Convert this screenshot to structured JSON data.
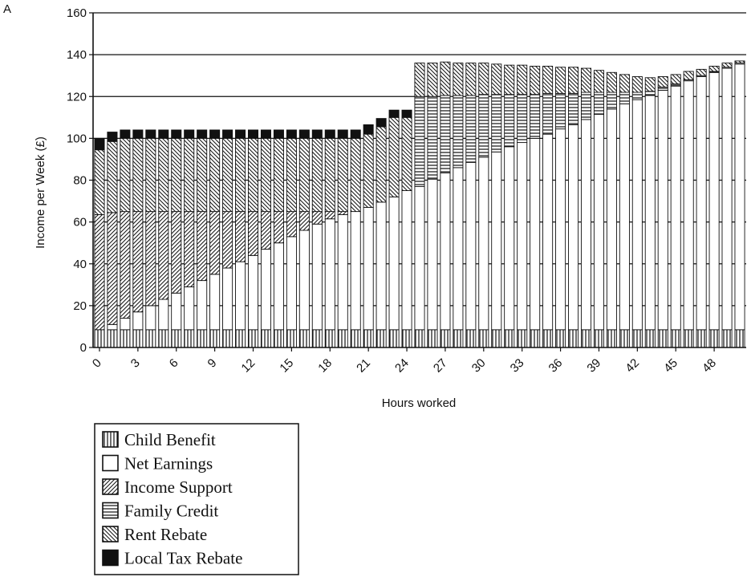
{
  "panel_label": "A",
  "chart_data": {
    "type": "bar",
    "stacked": true,
    "xlabel": "Hours worked",
    "ylabel": "Income per Week (£)",
    "ylim": [
      0,
      160
    ],
    "yticks": [
      0,
      20,
      40,
      60,
      80,
      100,
      120,
      140,
      160
    ],
    "xtick_labels": [
      "0",
      "3",
      "6",
      "9",
      "12",
      "15",
      "18",
      "21",
      "24",
      "27",
      "30",
      "33",
      "36",
      "39",
      "42",
      "45",
      "48"
    ],
    "grid": "horizontal",
    "legend_position": "below",
    "categories": [
      0,
      1,
      2,
      3,
      4,
      5,
      6,
      7,
      8,
      9,
      10,
      11,
      12,
      13,
      14,
      15,
      16,
      17,
      18,
      19,
      20,
      21,
      22,
      23,
      24,
      25,
      26,
      27,
      28,
      29,
      30,
      31,
      32,
      33,
      34,
      35,
      36,
      37,
      38,
      39,
      40,
      41,
      42,
      43,
      44,
      45,
      46,
      47,
      48,
      49,
      50
    ],
    "series": [
      {
        "name": "Child Benefit",
        "pattern": "vertical",
        "values": [
          8.5,
          8.5,
          8.5,
          8.5,
          8.5,
          8.5,
          8.5,
          8.5,
          8.5,
          8.5,
          8.5,
          8.5,
          8.5,
          8.5,
          8.5,
          8.5,
          8.5,
          8.5,
          8.5,
          8.5,
          8.5,
          8.5,
          8.5,
          8.5,
          8.5,
          8.5,
          8.5,
          8.5,
          8.5,
          8.5,
          8.5,
          8.5,
          8.5,
          8.5,
          8.5,
          8.5,
          8.5,
          8.5,
          8.5,
          8.5,
          8.5,
          8.5,
          8.5,
          8.5,
          8.5,
          8.5,
          8.5,
          8.5,
          8.5,
          8.5,
          8.5
        ]
      },
      {
        "name": "Net Earnings",
        "pattern": "blank",
        "values": [
          0,
          2.5,
          5.5,
          8.5,
          11.5,
          14.5,
          17.5,
          20.5,
          23.5,
          26.5,
          29.5,
          32.5,
          35.5,
          38.5,
          41.5,
          44.5,
          47.5,
          50.5,
          53,
          55,
          56.5,
          58.5,
          61,
          63.5,
          66.5,
          68.5,
          72,
          75,
          77.5,
          80,
          82.5,
          85,
          87.5,
          89.5,
          91.5,
          93.5,
          96,
          98,
          100.5,
          103,
          105.5,
          108,
          110,
          112,
          114.5,
          116.5,
          119,
          121,
          123,
          125,
          127
        ]
      },
      {
        "name": "Income Support",
        "pattern": "diag-right",
        "values": [
          55,
          53.5,
          51,
          48,
          45,
          42,
          39,
          36,
          33,
          30,
          27,
          24,
          21,
          18,
          15,
          12,
          9,
          6,
          3.5,
          1.5,
          0,
          0,
          0,
          0,
          0,
          0,
          0,
          0,
          0,
          0,
          0,
          0,
          0,
          0,
          0,
          0,
          0,
          0,
          0,
          0,
          0,
          0,
          0,
          0,
          0,
          0,
          0,
          0,
          0,
          0,
          0
        ]
      },
      {
        "name": "Family Credit",
        "pattern": "horizontal",
        "values": [
          0,
          0,
          0,
          0,
          0,
          0,
          0,
          0,
          0,
          0,
          0,
          0,
          0,
          0,
          0,
          0,
          0,
          0,
          0,
          0,
          0,
          0,
          0,
          0,
          0,
          43,
          39.5,
          37,
          34.5,
          32,
          30,
          27.5,
          25,
          23,
          21,
          19.5,
          17,
          15,
          13,
          10.5,
          8,
          5.5,
          3.5,
          2,
          1.5,
          1,
          0.5,
          0.5,
          0.5,
          0.5,
          0.5
        ]
      },
      {
        "name": "Rent Rebate",
        "pattern": "diag-left",
        "values": [
          31,
          34,
          35,
          35,
          35,
          35,
          35,
          35,
          35,
          35,
          35,
          35,
          35,
          35,
          35,
          35,
          35,
          35,
          35,
          35,
          35,
          35,
          36,
          38,
          35,
          16,
          16,
          16,
          15.5,
          15.5,
          15,
          14.5,
          14,
          14,
          13.5,
          13,
          12.5,
          12.5,
          11.5,
          10.5,
          9.5,
          8.5,
          7.5,
          6.5,
          5,
          4.5,
          4,
          3,
          2.5,
          2,
          1
        ]
      },
      {
        "name": "Local Tax Rebate",
        "pattern": "solid",
        "values": [
          5.5,
          4.5,
          4,
          4,
          4,
          4,
          4,
          4,
          4,
          4,
          4,
          4,
          4,
          4,
          4,
          4,
          4,
          4,
          4,
          4,
          4,
          4.5,
          4,
          3.5,
          3.5,
          0,
          0,
          0,
          0,
          0,
          0,
          0,
          0,
          0,
          0,
          0,
          0,
          0,
          0,
          0,
          0,
          0,
          0,
          0,
          0,
          0,
          0,
          0,
          0,
          0,
          0
        ]
      }
    ]
  }
}
